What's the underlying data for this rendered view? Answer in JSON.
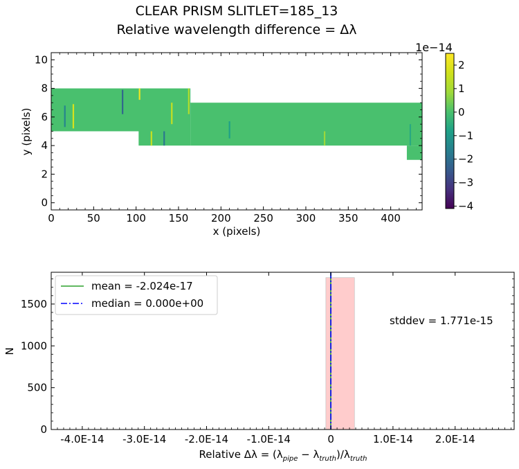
{
  "figure": {
    "title_line1": "CLEAR   PRISM   SLITLET=185_13",
    "title_line2": "Relative wavelength difference = Δλ"
  },
  "chart_data": [
    {
      "type": "heatmap",
      "xlabel": "x (pixels)",
      "ylabel": "y (pixels)",
      "xlim": [
        0,
        437
      ],
      "ylim": [
        -0.5,
        10.5
      ],
      "xticks": [
        0,
        50,
        100,
        150,
        200,
        250,
        300,
        350,
        400
      ],
      "yticks": [
        0,
        2,
        4,
        6,
        8,
        10
      ],
      "background_value": 0,
      "regions": [
        {
          "x": [
            0,
            164
          ],
          "y": [
            5,
            8
          ]
        },
        {
          "x": [
            103,
            164
          ],
          "y": [
            4,
            5
          ]
        },
        {
          "x": [
            164,
            437
          ],
          "y": [
            4,
            7
          ]
        },
        {
          "x": [
            419,
            437
          ],
          "y": [
            3,
            4
          ]
        }
      ],
      "streaks": [
        {
          "x": 16,
          "y": [
            5.3,
            6.8
          ],
          "value": -1.5e-14
        },
        {
          "x": 26,
          "y": [
            5.2,
            6.9
          ],
          "value": 1.8e-14
        },
        {
          "x": 84,
          "y": [
            6.2,
            7.9
          ],
          "value": -2.2e-14
        },
        {
          "x": 104,
          "y": [
            7.2,
            8.0
          ],
          "value": 2.2e-14
        },
        {
          "x": 118,
          "y": [
            4.0,
            5.0
          ],
          "value": 1.5e-14
        },
        {
          "x": 133,
          "y": [
            4.0,
            5.0
          ],
          "value": -1.8e-14
        },
        {
          "x": 142,
          "y": [
            5.5,
            7.0
          ],
          "value": 1.5e-14
        },
        {
          "x": 162,
          "y": [
            6.2,
            8.0
          ],
          "value": 1.2e-14
        },
        {
          "x": 210,
          "y": [
            4.5,
            5.7
          ],
          "value": -8e-15
        },
        {
          "x": 322,
          "y": [
            4.0,
            5.0
          ],
          "value": 8e-15
        },
        {
          "x": 423,
          "y": [
            4.0,
            5.5
          ],
          "value": -6e-15
        }
      ],
      "colorbar": {
        "colormap": "viridis",
        "range": [
          -4.1,
          2.5
        ],
        "ticks": [
          -4,
          -3,
          -2,
          -1,
          0,
          1,
          2
        ],
        "ticklabels": [
          "−4",
          "−3",
          "−2",
          "−1",
          "0",
          "1",
          "2"
        ],
        "offset_label": "1e−14"
      }
    },
    {
      "type": "bar",
      "subtype": "histogram",
      "xlabel": "Relative Δλ = (λpipe − λtruth)/λtruth",
      "ylabel": "N",
      "xlim": [
        -4.5e-14,
        2.95e-14
      ],
      "ylim": [
        0,
        1880
      ],
      "xticks": [
        -4e-14,
        -3e-14,
        -2e-14,
        -1e-14,
        0,
        1e-14,
        2e-14
      ],
      "xticklabels": [
        "-4.0E-14",
        "-3.0E-14",
        "-2.0E-14",
        "-1.0E-14",
        "0",
        "1.0E-14",
        "2.0E-14"
      ],
      "yticks": [
        0,
        500,
        1000,
        1500
      ],
      "bins": [
        {
          "x0": -8e-16,
          "x1": 3.8e-15,
          "count": 1816
        }
      ],
      "bar_color": "#ffcccc",
      "lines": [
        {
          "name": "mean = -2.024e-17",
          "x": -2.024e-17,
          "color": "#2ca02c",
          "style": "solid"
        },
        {
          "name": "median = 0.000e+00",
          "x": 0,
          "color": "#0000ff",
          "style": "dashdot"
        }
      ],
      "annotation": "stddev = 1.771e-15",
      "legend_position": "top-left"
    }
  ]
}
